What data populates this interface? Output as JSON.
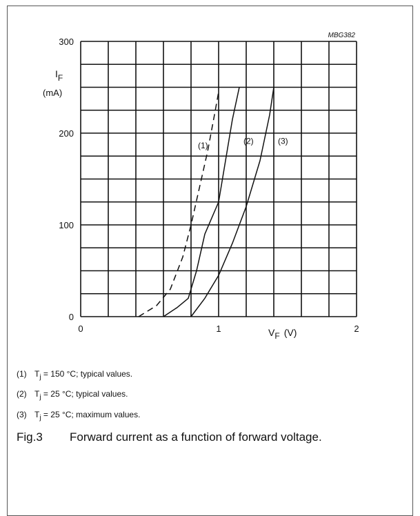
{
  "chart_data": {
    "type": "line",
    "code": "MBG382",
    "xlim": [
      0,
      2
    ],
    "ylim": [
      0,
      300
    ],
    "x_ticks": [
      {
        "value": 0,
        "label": "0"
      },
      {
        "value": 1,
        "label": "1"
      },
      {
        "value": 2,
        "label": "2"
      }
    ],
    "y_ticks": [
      {
        "value": 0,
        "label": "0"
      },
      {
        "value": 100,
        "label": "100"
      },
      {
        "value": 200,
        "label": "200"
      },
      {
        "value": 300,
        "label": "300"
      }
    ],
    "grid": true,
    "grid_major_x": 0.2,
    "grid_major_y": 25,
    "xlabel": {
      "symbol": "V",
      "sub": "F",
      "unit": "(V)"
    },
    "ylabel": {
      "symbol": "I",
      "sub": "F",
      "unit": "(mA)"
    },
    "series": [
      {
        "name": "(1)",
        "dashed": true,
        "x": [
          0.42,
          0.55,
          0.65,
          0.74,
          0.8,
          0.86,
          0.92,
          0.97,
          1.0
        ],
        "y": [
          0,
          12,
          30,
          65,
          100,
          140,
          180,
          220,
          245
        ]
      },
      {
        "name": "(2)",
        "dashed": false,
        "x": [
          0.6,
          0.7,
          0.78,
          0.84,
          0.9,
          1.0,
          1.05,
          1.1,
          1.15
        ],
        "y": [
          0,
          10,
          20,
          50,
          90,
          125,
          170,
          215,
          250
        ]
      },
      {
        "name": "(3)",
        "dashed": false,
        "x": [
          0.8,
          0.9,
          1.0,
          1.1,
          1.2,
          1.3,
          1.37,
          1.4
        ],
        "y": [
          0,
          20,
          45,
          80,
          120,
          170,
          220,
          250
        ]
      }
    ]
  },
  "notes": [
    {
      "num": "(1)",
      "prefix": "T",
      "sub": "j",
      "text": "= 150 °C; typical values."
    },
    {
      "num": "(2)",
      "prefix": "T",
      "sub": "j",
      "text": "= 25 °C; typical values."
    },
    {
      "num": "(3)",
      "prefix": "T",
      "sub": "j",
      "text": "= 25 °C; maximum values."
    }
  ],
  "caption": {
    "label": "Fig.3",
    "text": "Forward current as a function of forward voltage."
  }
}
